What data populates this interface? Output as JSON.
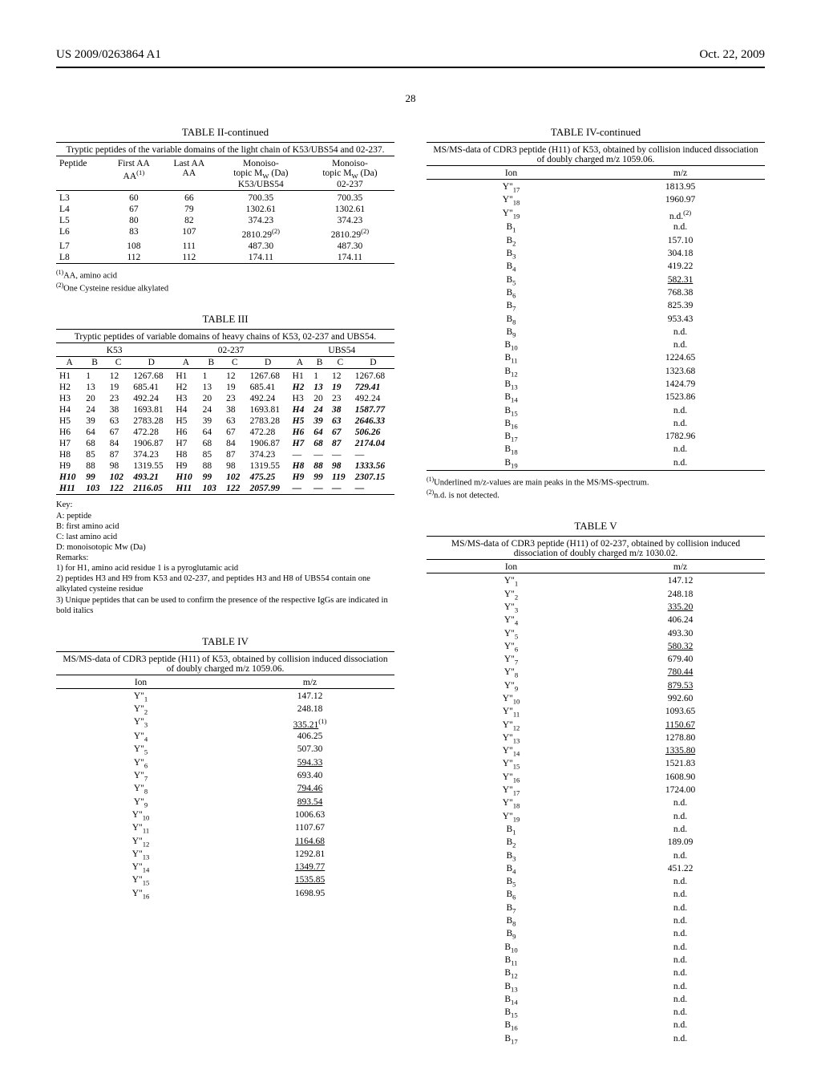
{
  "header": {
    "left": "US 2009/0263864 A1",
    "right": "Oct. 22, 2009"
  },
  "page_number": "28",
  "table2": {
    "title": "TABLE II-continued",
    "caption": "Tryptic peptides of the variable domains of the light chain of K53/UBS54 and 02-237.",
    "col_headers": {
      "peptide": "Peptide",
      "first_aa": "First AA",
      "first_aa_sup": "(1)",
      "last_aa": "Last AA",
      "mono1_line1": "Monoiso-",
      "mono1_line2": "topic M",
      "mono1_sub": "W",
      "mono1_line3": " (Da)",
      "mono1_src": "K53/UBS54",
      "mono2_line1": "Monoiso-",
      "mono2_line2": "topic M",
      "mono2_sub": "W",
      "mono2_line3": " (Da)",
      "mono2_src": "02-237"
    },
    "rows": [
      {
        "p": "L3",
        "f": "60",
        "l": "66",
        "m1": "700.35",
        "m2": "700.35",
        "sup1": "",
        "sup2": ""
      },
      {
        "p": "L4",
        "f": "67",
        "l": "79",
        "m1": "1302.61",
        "m2": "1302.61",
        "sup1": "",
        "sup2": ""
      },
      {
        "p": "L5",
        "f": "80",
        "l": "82",
        "m1": "374.23",
        "m2": "374.23",
        "sup1": "",
        "sup2": ""
      },
      {
        "p": "L6",
        "f": "83",
        "l": "107",
        "m1": "2810.29",
        "m2": "2810.29",
        "sup1": "(2)",
        "sup2": "(2)"
      },
      {
        "p": "L7",
        "f": "108",
        "l": "111",
        "m1": "487.30",
        "m2": "487.30",
        "sup1": "",
        "sup2": ""
      },
      {
        "p": "L8",
        "f": "112",
        "l": "112",
        "m1": "174.11",
        "m2": "174.11",
        "sup1": "",
        "sup2": ""
      }
    ],
    "footnotes": [
      "(1)AA, amino acid",
      "(2)One Cysteine residue alkylated"
    ]
  },
  "table3": {
    "title": "TABLE III",
    "caption": "Tryptic peptides of variable domains of heavy chains of K53, 02-237 and UBS54.",
    "group_headers": [
      "K53",
      "02-237",
      "UBS54"
    ],
    "abcd": [
      "A",
      "B",
      "C",
      "D",
      "A",
      "B",
      "C",
      "D",
      "A",
      "B",
      "C",
      "D"
    ],
    "rows": [
      {
        "bi": false,
        "c": [
          "H1",
          "1",
          "12",
          "1267.68",
          "H1",
          "1",
          "12",
          "1267.68",
          "H1",
          "1",
          "12",
          "1267.68"
        ]
      },
      {
        "bi": false,
        "c": [
          "H2",
          "13",
          "19",
          "685.41",
          "H2",
          "13",
          "19",
          "685.41",
          "H2",
          "13",
          "19",
          "729.41"
        ],
        "biCols": [
          8,
          9,
          10,
          11
        ]
      },
      {
        "bi": false,
        "c": [
          "H3",
          "20",
          "23",
          "492.24",
          "H3",
          "20",
          "23",
          "492.24",
          "H3",
          "20",
          "23",
          "492.24"
        ]
      },
      {
        "bi": false,
        "c": [
          "H4",
          "24",
          "38",
          "1693.81",
          "H4",
          "24",
          "38",
          "1693.81",
          "H4",
          "24",
          "38",
          "1587.77"
        ],
        "biCols": [
          8,
          9,
          10,
          11
        ]
      },
      {
        "bi": false,
        "c": [
          "H5",
          "39",
          "63",
          "2783.28",
          "H5",
          "39",
          "63",
          "2783.28",
          "H5",
          "39",
          "63",
          "2646.33"
        ],
        "biCols": [
          8,
          9,
          10,
          11
        ]
      },
      {
        "bi": false,
        "c": [
          "H6",
          "64",
          "67",
          "472.28",
          "H6",
          "64",
          "67",
          "472.28",
          "H6",
          "64",
          "67",
          "506.26"
        ],
        "biCols": [
          8,
          9,
          10,
          11
        ]
      },
      {
        "bi": false,
        "c": [
          "H7",
          "68",
          "84",
          "1906.87",
          "H7",
          "68",
          "84",
          "1906.87",
          "H7",
          "68",
          "87",
          "2174.04"
        ],
        "biCols": [
          8,
          9,
          10,
          11
        ]
      },
      {
        "bi": false,
        "c": [
          "H8",
          "85",
          "87",
          "374.23",
          "H8",
          "85",
          "87",
          "374.23",
          "—",
          "—",
          "—",
          "—"
        ]
      },
      {
        "bi": false,
        "c": [
          "H9",
          "88",
          "98",
          "1319.55",
          "H9",
          "88",
          "98",
          "1319.55",
          "H8",
          "88",
          "98",
          "1333.56"
        ],
        "biCols": [
          8,
          9,
          10,
          11
        ]
      },
      {
        "bi": true,
        "c": [
          "H10",
          "99",
          "102",
          "493.21",
          "H10",
          "99",
          "102",
          "475.25",
          "H9",
          "99",
          "119",
          "2307.15"
        ]
      },
      {
        "bi": true,
        "c": [
          "H11",
          "103",
          "122",
          "2116.05",
          "H11",
          "103",
          "122",
          "2057.99",
          "—",
          "—",
          "—",
          "—"
        ]
      }
    ],
    "key_title": "Key:",
    "key": [
      "A: peptide",
      "B: first amino acid",
      "C: last amino acid",
      "D: monoisotopic Mw (Da)"
    ],
    "remarks_title": "Remarks:",
    "remarks": [
      "1) for H1, amino acid residue 1 is a pyroglutamic acid",
      "2) peptides H3 and H9 from K53 and 02-237, and peptides H3 and H8 of UBS54 contain one alkylated cysteine residue",
      "3) Unique peptides that can be used to confirm the presence of the respective IgGs are indicated in bold italics"
    ]
  },
  "table4": {
    "title": "TABLE IV",
    "caption": "MS/MS-data of CDR3 peptide (H11) of K53, obtained by collision induced dissociation of doubly charged m/z 1059.06.",
    "col_headers": {
      "ion": "Ion",
      "mz": "m/z"
    },
    "rows_left": [
      {
        "ion": "Y\"",
        "sub": "1",
        "mz": "147.12",
        "u": false,
        "sup": ""
      },
      {
        "ion": "Y\"",
        "sub": "2",
        "mz": "248.18",
        "u": false,
        "sup": ""
      },
      {
        "ion": "Y\"",
        "sub": "3",
        "mz": "335.21",
        "u": true,
        "sup": "(1)"
      },
      {
        "ion": "Y\"",
        "sub": "4",
        "mz": "406.25",
        "u": false,
        "sup": ""
      },
      {
        "ion": "Y\"",
        "sub": "5",
        "mz": "507.30",
        "u": false,
        "sup": ""
      },
      {
        "ion": "Y\"",
        "sub": "6",
        "mz": "594.33",
        "u": true,
        "sup": ""
      },
      {
        "ion": "Y\"",
        "sub": "7",
        "mz": "693.40",
        "u": false,
        "sup": ""
      },
      {
        "ion": "Y\"",
        "sub": "8",
        "mz": "794.46",
        "u": true,
        "sup": ""
      },
      {
        "ion": "Y\"",
        "sub": "9",
        "mz": "893.54",
        "u": true,
        "sup": ""
      },
      {
        "ion": "Y\"",
        "sub": "10",
        "mz": "1006.63",
        "u": false,
        "sup": ""
      },
      {
        "ion": "Y\"",
        "sub": "11",
        "mz": "1107.67",
        "u": false,
        "sup": ""
      },
      {
        "ion": "Y\"",
        "sub": "12",
        "mz": "1164.68",
        "u": true,
        "sup": ""
      },
      {
        "ion": "Y\"",
        "sub": "13",
        "mz": "1292.81",
        "u": false,
        "sup": ""
      },
      {
        "ion": "Y\"",
        "sub": "14",
        "mz": "1349.77",
        "u": true,
        "sup": ""
      },
      {
        "ion": "Y\"",
        "sub": "15",
        "mz": "1535.85",
        "u": true,
        "sup": ""
      },
      {
        "ion": "Y\"",
        "sub": "16",
        "mz": "1698.95",
        "u": false,
        "sup": ""
      }
    ]
  },
  "table4cont": {
    "title": "TABLE IV-continued",
    "caption": "MS/MS-data of CDR3 peptide (H11) of K53, obtained by collision induced dissociation of doubly charged m/z 1059.06.",
    "col_headers": {
      "ion": "Ion",
      "mz": "m/z"
    },
    "rows": [
      {
        "ion": "Y\"",
        "sub": "17",
        "mz": "1813.95",
        "u": false,
        "sup": ""
      },
      {
        "ion": "Y\"",
        "sub": "18",
        "mz": "1960.97",
        "u": false,
        "sup": ""
      },
      {
        "ion": "Y\"",
        "sub": "19",
        "mz": "n.d.",
        "u": false,
        "sup": "(2)"
      },
      {
        "ion": "B",
        "sub": "1",
        "mz": "n.d.",
        "u": false,
        "sup": ""
      },
      {
        "ion": "B",
        "sub": "2",
        "mz": "157.10",
        "u": false,
        "sup": ""
      },
      {
        "ion": "B",
        "sub": "3",
        "mz": "304.18",
        "u": false,
        "sup": ""
      },
      {
        "ion": "B",
        "sub": "4",
        "mz": "419.22",
        "u": false,
        "sup": ""
      },
      {
        "ion": "B",
        "sub": "5",
        "mz": "582.31",
        "u": true,
        "sup": ""
      },
      {
        "ion": "B",
        "sub": "6",
        "mz": "768.38",
        "u": false,
        "sup": ""
      },
      {
        "ion": "B",
        "sub": "7",
        "mz": "825.39",
        "u": false,
        "sup": ""
      },
      {
        "ion": "B",
        "sub": "8",
        "mz": "953.43",
        "u": false,
        "sup": ""
      },
      {
        "ion": "B",
        "sub": "9",
        "mz": "n.d.",
        "u": false,
        "sup": ""
      },
      {
        "ion": "B",
        "sub": "10",
        "mz": "n.d.",
        "u": false,
        "sup": ""
      },
      {
        "ion": "B",
        "sub": "11",
        "mz": "1224.65",
        "u": false,
        "sup": ""
      },
      {
        "ion": "B",
        "sub": "12",
        "mz": "1323.68",
        "u": false,
        "sup": ""
      },
      {
        "ion": "B",
        "sub": "13",
        "mz": "1424.79",
        "u": false,
        "sup": ""
      },
      {
        "ion": "B",
        "sub": "14",
        "mz": "1523.86",
        "u": false,
        "sup": ""
      },
      {
        "ion": "B",
        "sub": "15",
        "mz": "n.d.",
        "u": false,
        "sup": ""
      },
      {
        "ion": "B",
        "sub": "16",
        "mz": "n.d.",
        "u": false,
        "sup": ""
      },
      {
        "ion": "B",
        "sub": "17",
        "mz": "1782.96",
        "u": false,
        "sup": ""
      },
      {
        "ion": "B",
        "sub": "18",
        "mz": "n.d.",
        "u": false,
        "sup": ""
      },
      {
        "ion": "B",
        "sub": "19",
        "mz": "n.d.",
        "u": false,
        "sup": ""
      }
    ],
    "footnotes": [
      "(1)Underlined m/z-values are main peaks in the MS/MS-spectrum.",
      "(2)n.d. is not detected."
    ]
  },
  "table5": {
    "title": "TABLE V",
    "caption": "MS/MS-data of CDR3 peptide (H11) of 02-237, obtained by collision induced dissociation of doubly charged m/z 1030.02.",
    "col_headers": {
      "ion": "Ion",
      "mz": "m/z"
    },
    "rows": [
      {
        "ion": "Y\"",
        "sub": "1",
        "mz": "147.12",
        "u": false
      },
      {
        "ion": "Y\"",
        "sub": "2",
        "mz": "248.18",
        "u": false
      },
      {
        "ion": "Y\"",
        "sub": "3",
        "mz": "335.20",
        "u": true
      },
      {
        "ion": "Y\"",
        "sub": "4",
        "mz": "406.24",
        "u": false
      },
      {
        "ion": "Y\"",
        "sub": "5",
        "mz": "493.30",
        "u": false
      },
      {
        "ion": "Y\"",
        "sub": "6",
        "mz": "580.32",
        "u": true
      },
      {
        "ion": "Y\"",
        "sub": "7",
        "mz": "679.40",
        "u": false
      },
      {
        "ion": "Y\"",
        "sub": "8",
        "mz": "780.44",
        "u": true
      },
      {
        "ion": "Y\"",
        "sub": "9",
        "mz": "879.53",
        "u": true
      },
      {
        "ion": "Y\"",
        "sub": "10",
        "mz": "992.60",
        "u": false
      },
      {
        "ion": "Y\"",
        "sub": "11",
        "mz": "1093.65",
        "u": false
      },
      {
        "ion": "Y\"",
        "sub": "12",
        "mz": "1150.67",
        "u": true
      },
      {
        "ion": "Y\"",
        "sub": "13",
        "mz": "1278.80",
        "u": false
      },
      {
        "ion": "Y\"",
        "sub": "14",
        "mz": "1335.80",
        "u": true
      },
      {
        "ion": "Y\"",
        "sub": "15",
        "mz": "1521.83",
        "u": false
      },
      {
        "ion": "Y\"",
        "sub": "16",
        "mz": "1608.90",
        "u": false
      },
      {
        "ion": "Y\"",
        "sub": "17",
        "mz": "1724.00",
        "u": false
      },
      {
        "ion": "Y\"",
        "sub": "18",
        "mz": "n.d.",
        "u": false
      },
      {
        "ion": "Y\"",
        "sub": "19",
        "mz": "n.d.",
        "u": false
      },
      {
        "ion": "B",
        "sub": "1",
        "mz": "n.d.",
        "u": false
      },
      {
        "ion": "B",
        "sub": "2",
        "mz": "189.09",
        "u": false
      },
      {
        "ion": "B",
        "sub": "3",
        "mz": "n.d.",
        "u": false
      },
      {
        "ion": "B",
        "sub": "4",
        "mz": "451.22",
        "u": false
      },
      {
        "ion": "B",
        "sub": "5",
        "mz": "n.d.",
        "u": false
      },
      {
        "ion": "B",
        "sub": "6",
        "mz": "n.d.",
        "u": false
      },
      {
        "ion": "B",
        "sub": "7",
        "mz": "n.d.",
        "u": false
      },
      {
        "ion": "B",
        "sub": "8",
        "mz": "n.d.",
        "u": false
      },
      {
        "ion": "B",
        "sub": "9",
        "mz": "n.d.",
        "u": false
      },
      {
        "ion": "B",
        "sub": "10",
        "mz": "n.d.",
        "u": false
      },
      {
        "ion": "B",
        "sub": "11",
        "mz": "n.d.",
        "u": false
      },
      {
        "ion": "B",
        "sub": "12",
        "mz": "n.d.",
        "u": false
      },
      {
        "ion": "B",
        "sub": "13",
        "mz": "n.d.",
        "u": false
      },
      {
        "ion": "B",
        "sub": "14",
        "mz": "n.d.",
        "u": false
      },
      {
        "ion": "B",
        "sub": "15",
        "mz": "n.d.",
        "u": false
      },
      {
        "ion": "B",
        "sub": "16",
        "mz": "n.d.",
        "u": false
      },
      {
        "ion": "B",
        "sub": "17",
        "mz": "n.d.",
        "u": false
      }
    ]
  }
}
